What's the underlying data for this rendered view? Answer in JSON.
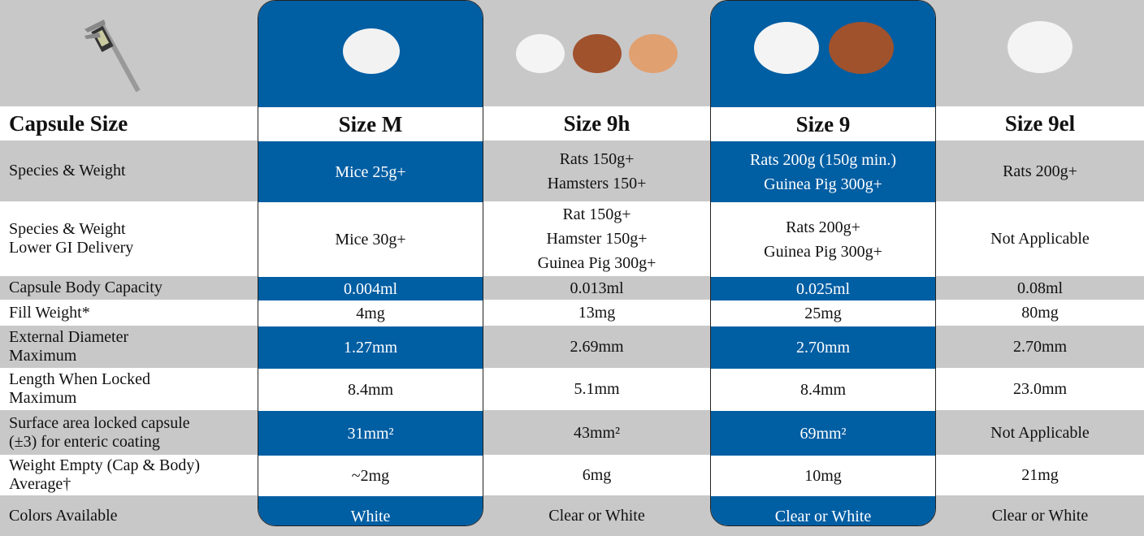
{
  "header": {
    "label": "Capsule Size",
    "icons": [
      "caliper-icon"
    ]
  },
  "row_labels": [
    "Species & Weight",
    "Species & Weight\nLower GI Delivery",
    "Capsule Body Capacity",
    "Fill Weight*",
    "External Diameter\nMaximum",
    "Length When Locked\nMaximum",
    "Surface area locked capsule\n(±3) for enteric coating",
    "Weight Empty (Cap & Body)\nAverage†",
    "Colors Available"
  ],
  "columns": [
    {
      "title": "Size M",
      "animals": [
        "mouse"
      ],
      "values": [
        "Mice 25g+",
        "Mice 30g+",
        "0.004ml",
        "4mg",
        "1.27mm",
        "8.4mm",
        "31mm²",
        "~2mg",
        "White"
      ]
    },
    {
      "title": "Size 9h",
      "animals": [
        "rat",
        "guinea-pig",
        "hamster"
      ],
      "values": [
        "Rats 150g+\nHamsters 150+",
        "Rat 150g+\nHamster 150g+\nGuinea Pig 300g+",
        "0.013ml",
        "13mg",
        "2.69mm",
        "5.1mm",
        "43mm²",
        "6mg",
        "Clear or White"
      ]
    },
    {
      "title": "Size 9",
      "animals": [
        "rat",
        "guinea-pig"
      ],
      "values": [
        "Rats 200g (150g min.)\nGuinea Pig 300g+",
        "Rats 200g+\nGuinea Pig 300g+",
        "0.025ml",
        "25mg",
        "2.70mm",
        "8.4mm",
        "69mm²",
        "10mg",
        "Clear or White"
      ]
    },
    {
      "title": "Size 9el",
      "animals": [
        "rat"
      ],
      "values": [
        "Rats 200g+",
        "Not Applicable",
        "0.08ml",
        "80mg",
        "2.70mm",
        "23.0mm",
        "Not Applicable",
        "21mg",
        "Clear or White"
      ]
    }
  ],
  "colors": {
    "blue": "#005ea3",
    "gray": "#c8c8c9"
  }
}
